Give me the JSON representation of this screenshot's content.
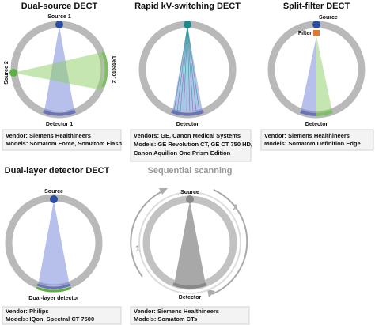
{
  "panels": [
    {
      "title": "Dual-source DECT",
      "labels": [
        "Source 1",
        "Source 2",
        "Detector 2",
        "Detector 1"
      ],
      "caption": [
        "Vendor: Siemens Healthineers",
        "Models: Somatom Force, Somatom Flash"
      ]
    },
    {
      "title": "Rapid kV-switching DECT",
      "labels": [
        "Detector"
      ],
      "caption": [
        "Vendors: GE, Canon Medical Systems",
        "Models: GE Revolution CT, GE CT 750 HD,",
        "Canon Aquilion One Prism Edition"
      ]
    },
    {
      "title": "Split-filter DECT",
      "labels": [
        "Source",
        "Filter",
        "Detector"
      ],
      "caption": [
        "Vendor: Siemens Healthineers",
        "Models: Somatom Definition Edge"
      ]
    },
    {
      "title": "Dual-layer detector DECT",
      "labels": [
        "Source",
        "Dual-layer detector"
      ],
      "caption": [
        "Vendor: Philips",
        "Models: IQon, Spectral CT 7500"
      ]
    },
    {
      "title": "Sequential scanning",
      "labels": [
        "Source",
        "Detector",
        "1",
        "2"
      ],
      "caption": [
        "Vendor: Siemens Healthineers",
        "Models: Somatom CTs"
      ]
    }
  ]
}
